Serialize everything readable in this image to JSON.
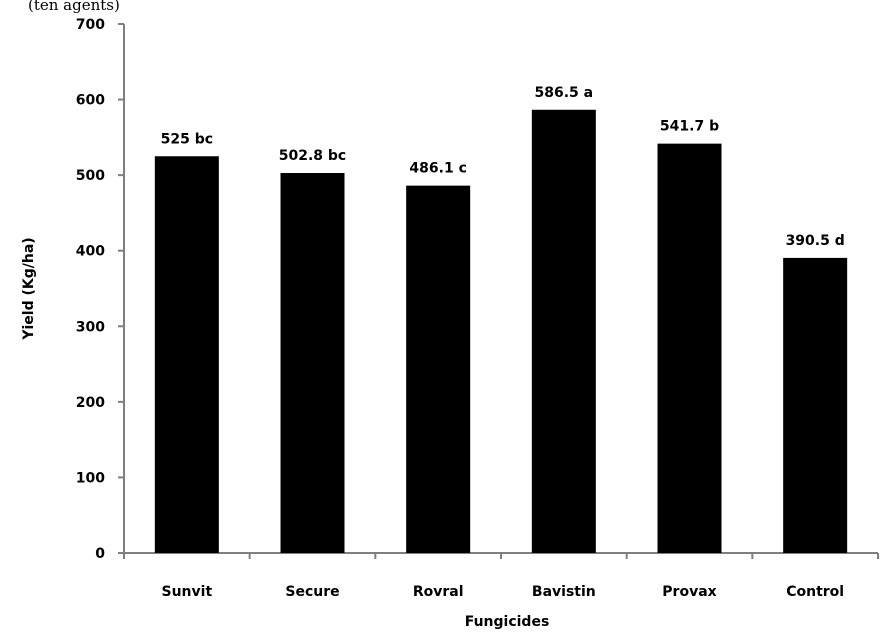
{
  "top_text": "(ten agents)",
  "chart_data": {
    "type": "bar",
    "categories": [
      "Sunvit",
      "Secure",
      "Rovral",
      "Bavistin",
      "Provax",
      "Control"
    ],
    "values": [
      525,
      502.8,
      486.1,
      586.5,
      541.7,
      390.5
    ],
    "data_labels": [
      "525 bc",
      "502.8 bc",
      "486.1 c",
      "586.5 a",
      "541.7 b",
      "390.5 d"
    ],
    "title": "",
    "xlabel": "Fungicides",
    "ylabel": "Yield (Kg/ha)",
    "ylim": [
      0,
      700
    ],
    "yticks": [
      "0",
      "100",
      "200",
      "300",
      "400",
      "500",
      "600",
      "700"
    ],
    "grid": false,
    "bar_color": "#000000",
    "axis_color": "#7f7f7f"
  }
}
